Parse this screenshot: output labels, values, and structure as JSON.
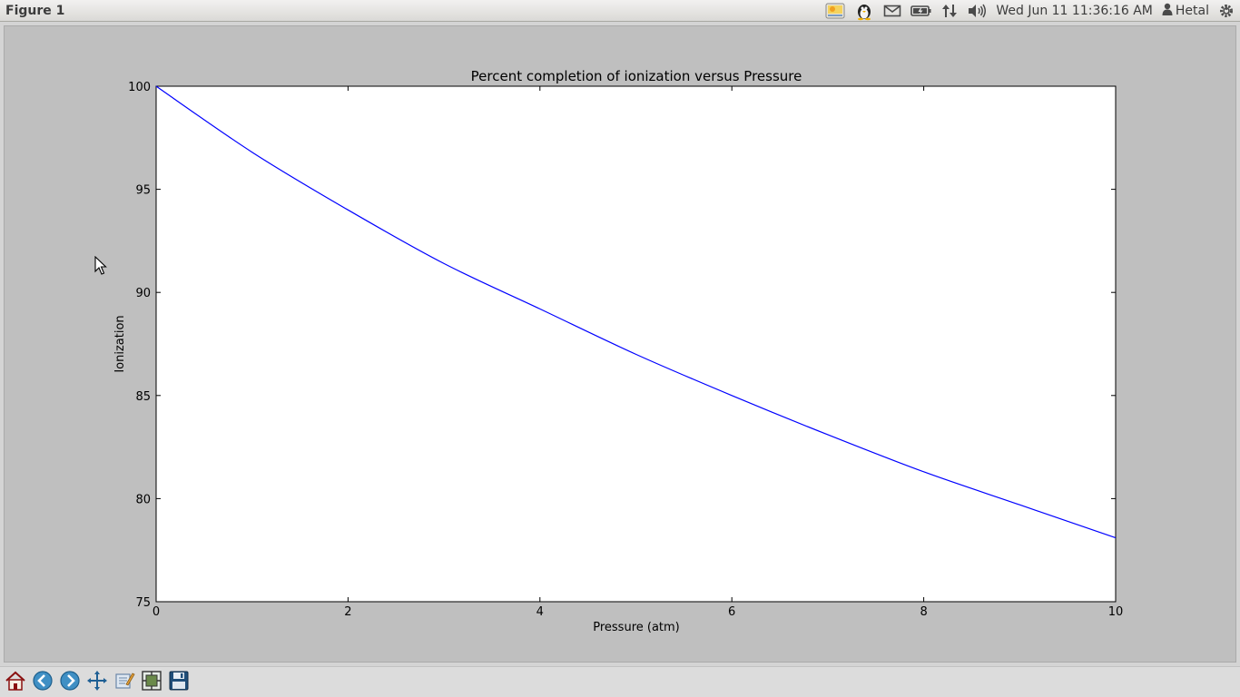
{
  "window": {
    "title": "Figure 1"
  },
  "panel": {
    "clock": "Wed Jun 11 11:36:16 AM",
    "user": "Hetal",
    "indicator_icons": [
      "weather-app-icon",
      "penguin-tray-icon",
      "mail-icon",
      "battery-icon",
      "network-icon",
      "volume-icon",
      "user-icon",
      "session-gear-icon"
    ]
  },
  "toolbar": {
    "buttons": [
      {
        "name": "home-button",
        "icon": "home-icon",
        "tooltip": ""
      },
      {
        "name": "back-button",
        "icon": "back-arrow-icon"
      },
      {
        "name": "forward-button",
        "icon": "forward-arrow-icon"
      },
      {
        "name": "pan-button",
        "icon": "move-arrows-icon"
      },
      {
        "name": "zoom-rect-button",
        "icon": "edit-rect-icon"
      },
      {
        "name": "subplots-button",
        "icon": "subplots-icon"
      },
      {
        "name": "save-button",
        "icon": "floppy-disk-icon"
      }
    ]
  },
  "colors": {
    "line": "#0000ff",
    "figure_bg": "#bfbfbf",
    "axes_bg": "#ffffff"
  },
  "chart_data": {
    "type": "line",
    "title": "Percent completion of ionization versus Pressure",
    "xlabel": "Pressure (atm)",
    "ylabel": "Ionization",
    "xlim": [
      0,
      10
    ],
    "ylim": [
      75,
      100
    ],
    "xticks": [
      "0",
      "2",
      "4",
      "6",
      "8",
      "10"
    ],
    "yticks": [
      "75",
      "80",
      "85",
      "90",
      "95",
      "100"
    ],
    "grid": false,
    "legend": "none",
    "series": [
      {
        "x": [
          0,
          1,
          2,
          3,
          4,
          5,
          6,
          7,
          8,
          9,
          10
        ],
        "values": [
          100,
          96.8,
          94.0,
          91.4,
          89.2,
          87.0,
          85.0,
          83.1,
          81.3,
          79.7,
          78.1
        ]
      }
    ]
  }
}
